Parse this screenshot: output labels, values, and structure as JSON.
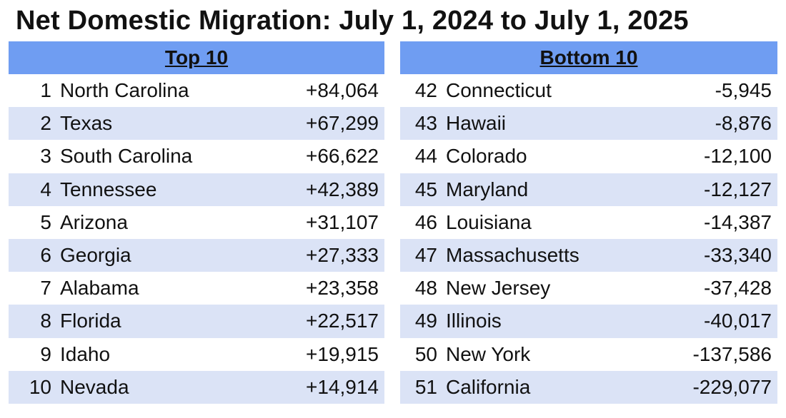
{
  "title": "Net Domestic Migration: July 1, 2024 to July 1, 2025",
  "top_table": {
    "header": "Top 10",
    "rows": [
      {
        "rank": "1",
        "state": "North Carolina",
        "value": "+84,064"
      },
      {
        "rank": "2",
        "state": "Texas",
        "value": "+67,299"
      },
      {
        "rank": "3",
        "state": "South Carolina",
        "value": "+66,622"
      },
      {
        "rank": "4",
        "state": "Tennessee",
        "value": "+42,389"
      },
      {
        "rank": "5",
        "state": "Arizona",
        "value": "+31,107"
      },
      {
        "rank": "6",
        "state": "Georgia",
        "value": "+27,333"
      },
      {
        "rank": "7",
        "state": "Alabama",
        "value": "+23,358"
      },
      {
        "rank": "8",
        "state": "Florida",
        "value": "+22,517"
      },
      {
        "rank": "9",
        "state": "Idaho",
        "value": "+19,915"
      },
      {
        "rank": "10",
        "state": "Nevada",
        "value": "+14,914"
      }
    ]
  },
  "bottom_table": {
    "header": "Bottom 10",
    "rows": [
      {
        "rank": "42",
        "state": "Connecticut",
        "value": "-5,945"
      },
      {
        "rank": "43",
        "state": "Hawaii",
        "value": "-8,876"
      },
      {
        "rank": "44",
        "state": "Colorado",
        "value": "-12,100"
      },
      {
        "rank": "45",
        "state": "Maryland",
        "value": "-12,127"
      },
      {
        "rank": "46",
        "state": "Louisiana",
        "value": "-14,387"
      },
      {
        "rank": "47",
        "state": "Massachusetts",
        "value": "-33,340"
      },
      {
        "rank": "48",
        "state": "New Jersey",
        "value": "-37,428"
      },
      {
        "rank": "49",
        "state": "Illinois",
        "value": "-40,017"
      },
      {
        "rank": "50",
        "state": "New York",
        "value": "-137,586"
      },
      {
        "rank": "51",
        "state": "California",
        "value": "-229,077"
      }
    ]
  },
  "colors": {
    "header_bg": "#6f9df2",
    "alt_row_bg": "#dbe3f6",
    "text": "#111111"
  }
}
